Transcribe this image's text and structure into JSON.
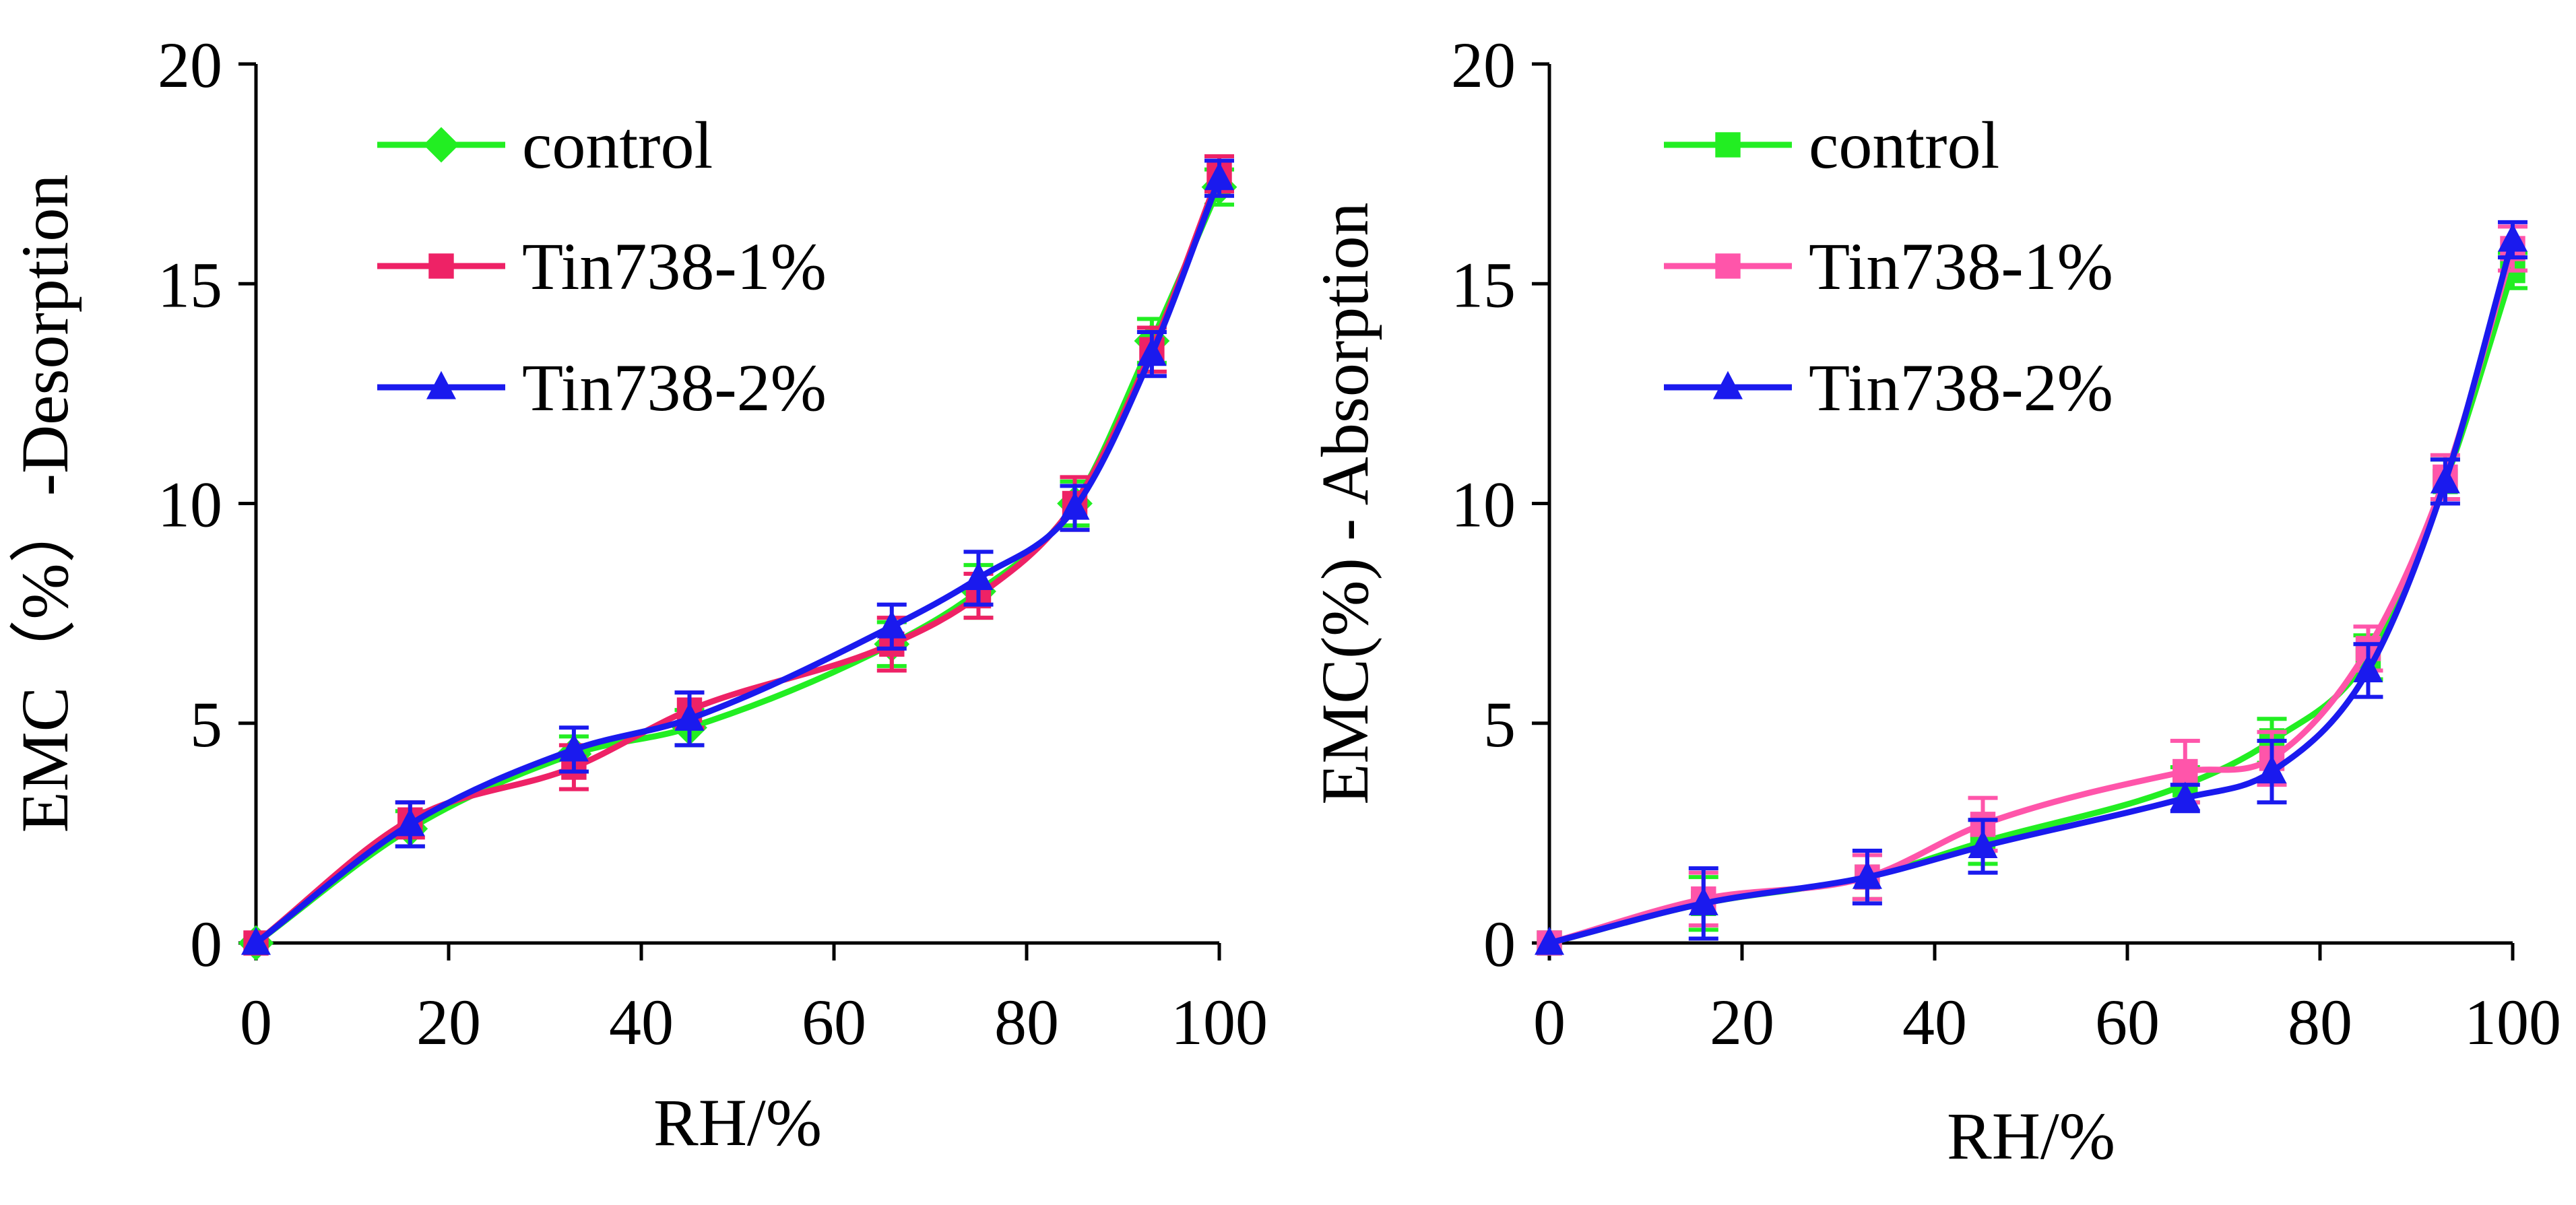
{
  "colors": {
    "control": "#22ee22",
    "tin1": "#ee2266",
    "tin2": "#1a1aee",
    "tin1_right": "#ff55aa",
    "axis": "#000000"
  },
  "chart_data": [
    {
      "type": "line",
      "ylabel": "EMC（%）-Desorption",
      "xlabel": "RH/%",
      "xlim": [
        0,
        100
      ],
      "ylim": [
        0,
        20
      ],
      "xticks": [
        "0",
        "20",
        "40",
        "60",
        "80",
        "100"
      ],
      "yticks": [
        "0",
        "5",
        "10",
        "15",
        "20"
      ],
      "legend_position": "top-left",
      "grid": false,
      "x": [
        0,
        16,
        33,
        45,
        66,
        75,
        85,
        93,
        100
      ],
      "series": [
        {
          "name": "control",
          "marker": "diamond",
          "color_key": "control",
          "values": [
            0,
            2.6,
            4.3,
            4.9,
            6.8,
            8.0,
            10.0,
            13.7,
            17.2
          ],
          "errors": [
            0,
            0.4,
            0.4,
            0.4,
            0.5,
            0.6,
            0.5,
            0.5,
            0.4
          ]
        },
        {
          "name": "Tin738-1%",
          "marker": "square",
          "color_key": "tin1",
          "values": [
            0,
            2.8,
            4.0,
            5.3,
            6.8,
            7.9,
            10.0,
            13.5,
            17.5
          ],
          "errors": [
            0,
            0.4,
            0.5,
            0.4,
            0.6,
            0.5,
            0.6,
            0.5,
            0.4
          ]
        },
        {
          "name": "Tin738-2%",
          "marker": "triangle",
          "color_key": "tin2",
          "values": [
            0,
            2.7,
            4.4,
            5.1,
            7.2,
            8.3,
            9.9,
            13.4,
            17.4
          ],
          "errors": [
            0,
            0.5,
            0.5,
            0.6,
            0.5,
            0.6,
            0.5,
            0.5,
            0.4
          ]
        }
      ]
    },
    {
      "type": "line",
      "ylabel": "EMC(%) - Absorption",
      "xlabel": "RH/%",
      "xlim": [
        0,
        100
      ],
      "ylim": [
        0,
        20
      ],
      "xticks": [
        "0",
        "20",
        "40",
        "60",
        "80",
        "100"
      ],
      "yticks": [
        "0",
        "5",
        "10",
        "15",
        "20"
      ],
      "legend_position": "top-left",
      "grid": false,
      "x": [
        0,
        16,
        33,
        45,
        66,
        75,
        85,
        93,
        100
      ],
      "series": [
        {
          "name": "control",
          "marker": "square",
          "color_key": "control",
          "values": [
            0,
            0.9,
            1.5,
            2.3,
            3.6,
            4.6,
            6.5,
            10.5,
            15.3
          ],
          "errors": [
            0,
            0.6,
            0.5,
            0.5,
            0.4,
            0.5,
            0.5,
            0.5,
            0.4
          ]
        },
        {
          "name": "Tin738-1%",
          "marker": "square",
          "color_key": "tin1_right",
          "values": [
            0,
            1.0,
            1.5,
            2.7,
            3.9,
            4.2,
            6.7,
            10.6,
            15.8
          ],
          "errors": [
            0,
            0.6,
            0.5,
            0.6,
            0.7,
            0.6,
            0.5,
            0.5,
            0.5
          ]
        },
        {
          "name": "Tin738-2%",
          "marker": "triangle",
          "color_key": "tin2",
          "values": [
            0,
            0.9,
            1.5,
            2.2,
            3.3,
            3.9,
            6.2,
            10.5,
            16.0
          ],
          "errors": [
            0,
            0.8,
            0.6,
            0.6,
            0.3,
            0.7,
            0.6,
            0.5,
            0.4
          ]
        }
      ]
    }
  ]
}
